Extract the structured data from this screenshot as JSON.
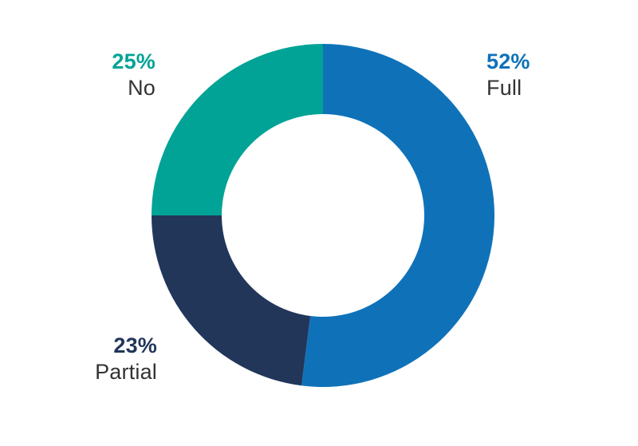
{
  "chart_data": {
    "type": "pie",
    "subtype": "donut",
    "title": "",
    "direction": "clockwise",
    "start_angle_deg": 0,
    "inner_radius_ratio": 0.59,
    "legend_position": "labels-beside-slices",
    "label_text_color": "#333333",
    "background_color": "#ffffff",
    "segments": [
      {
        "label": "Full",
        "value": 52,
        "pct_label": "52%",
        "color": "#0F72B9"
      },
      {
        "label": "Partial",
        "value": 23,
        "pct_label": "23%",
        "color": "#22365A"
      },
      {
        "label": "No",
        "value": 25,
        "pct_label": "25%",
        "color": "#00A396"
      }
    ]
  }
}
